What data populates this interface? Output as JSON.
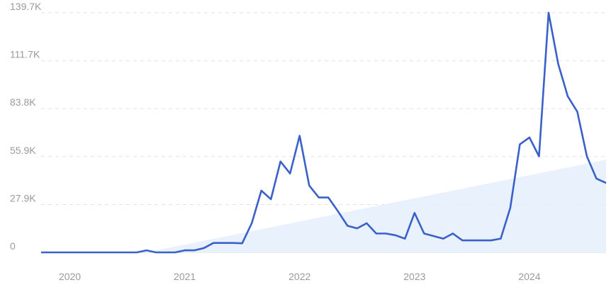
{
  "chart_data": {
    "type": "line",
    "categories": [
      null,
      null,
      null,
      "2020",
      null,
      null,
      null,
      null,
      null,
      null,
      null,
      null,
      null,
      null,
      null,
      "2021",
      null,
      null,
      null,
      null,
      null,
      null,
      null,
      null,
      null,
      null,
      null,
      "2022",
      null,
      null,
      null,
      null,
      null,
      null,
      null,
      null,
      null,
      null,
      null,
      "2023",
      null,
      null,
      null,
      null,
      null,
      null,
      null,
      null,
      null,
      null,
      null,
      "2024",
      null,
      null,
      null,
      null,
      null,
      null,
      null,
      null
    ],
    "series": [
      {
        "color": "#3a60c9",
        "values": [
          0,
          0,
          0,
          0,
          0,
          0,
          0,
          0,
          0,
          0,
          0,
          1.2,
          0,
          0,
          0,
          1.2,
          1.2,
          2.5,
          5.5,
          5.5,
          5.5,
          5.3,
          17,
          36,
          31,
          53,
          46,
          68,
          39,
          32,
          32,
          24,
          15.5,
          14,
          17,
          11,
          11,
          10,
          8,
          23,
          11,
          9.5,
          8,
          11,
          7,
          7,
          7,
          7,
          8,
          26,
          63,
          67,
          56,
          139.7,
          110,
          91,
          82,
          56,
          43,
          40.5
        ]
      },
      {
        "color": "#e6effc",
        "values": [
          null,
          null,
          null,
          null,
          null,
          null,
          null,
          null,
          null,
          null,
          null,
          0,
          1.1,
          2.3,
          3.4,
          4.5,
          5.6,
          6.8,
          7.9,
          9,
          10.1,
          11.3,
          12.4,
          13.5,
          14.6,
          15.8,
          16.9,
          18,
          19.1,
          20.3,
          21.4,
          22.5,
          23.6,
          24.8,
          25.9,
          27,
          28.1,
          29.3,
          30.4,
          31.5,
          32.6,
          33.8,
          34.9,
          36,
          37.1,
          38.3,
          39.4,
          40.5,
          41.6,
          42.8,
          43.9,
          45,
          46.1,
          47.3,
          48.4,
          49.5,
          50.6,
          51.8,
          52.9,
          54
        ]
      }
    ],
    "ylim": [
      0,
      139.7
    ],
    "yticks": [
      0,
      {
        "value": 27.9,
        "label": "27.9K"
      },
      {
        "value": 55.9,
        "label": "55.9K"
      },
      {
        "value": 83.8,
        "label": "83.8K"
      },
      {
        "value": 111.7,
        "label": "111.7K"
      },
      {
        "value": 139.7,
        "label": "139.7K"
      }
    ],
    "grid": true
  }
}
